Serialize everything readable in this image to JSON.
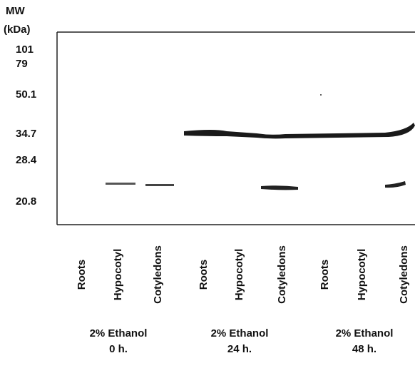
{
  "markers": {
    "title": "MW",
    "unit": "(kDa)",
    "labels": [
      "101",
      "79",
      "50.1",
      "34.7",
      "28.4",
      "20.8"
    ]
  },
  "lanes": [
    "Roots",
    "Hypocotyl",
    "Cotyledons",
    "Roots",
    "Hypocotyl",
    "Cotyledons",
    "Roots",
    "Hypocotyl",
    "Cotyledons"
  ],
  "groups": [
    {
      "condition": "2% Ethanol",
      "time": "0 h."
    },
    {
      "condition": "2% Ethanol",
      "time": "24 h."
    },
    {
      "condition": "2% Ethanol",
      "time": "48 h."
    }
  ]
}
